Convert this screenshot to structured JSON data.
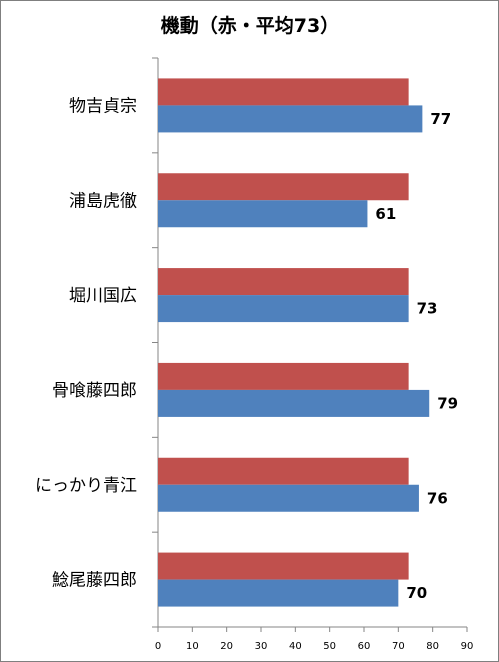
{
  "chart_data": {
    "type": "bar",
    "orientation": "horizontal",
    "title": "機動（赤・平均73）",
    "categories": [
      "物吉貞宗",
      "浦島虎徹",
      "堀川国広",
      "骨喰藤四郎",
      "にっかり青江",
      "鯰尾藤四郎"
    ],
    "series": [
      {
        "color": "#c0504d",
        "values": [
          73,
          73,
          73,
          73,
          73,
          73
        ]
      },
      {
        "color": "#4f81bd",
        "values": [
          77,
          61,
          73,
          79,
          76,
          70
        ]
      }
    ],
    "data_labels": [
      "77",
      "61",
      "73",
      "79",
      "76",
      "70"
    ],
    "xlim": [
      0,
      90
    ],
    "x_ticks": [
      "0",
      "10",
      "20",
      "30",
      "40",
      "50",
      "60",
      "70",
      "80",
      "90"
    ],
    "grid": false,
    "legend": "none"
  }
}
